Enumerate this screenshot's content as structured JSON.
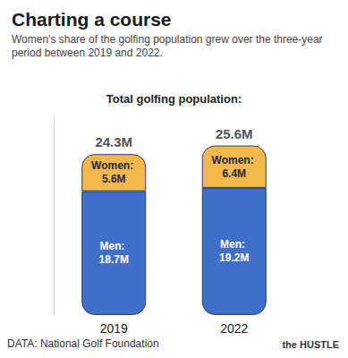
{
  "chart_data": {
    "type": "bar",
    "stacked": true,
    "title": "Charting a course",
    "subtitle": "Women's share of the golfing population grew over the three-year period between 2019 and 2022.",
    "annotation": "Total golfing population:",
    "source": "DATA: National Golf Foundation",
    "brand": "the HUSTLE",
    "categories": [
      "2019",
      "2022"
    ],
    "series": [
      {
        "name": "Men",
        "color": "#3f6fc6",
        "values": [
          18.7,
          19.2
        ],
        "value_labels": [
          "Men: 18.7M",
          "Men: 19.2M"
        ]
      },
      {
        "name": "Women",
        "color": "#f2b84b",
        "values": [
          5.6,
          6.4
        ],
        "value_labels": [
          "Women: 5.6M",
          "Women: 6.4M"
        ]
      }
    ],
    "totals": {
      "values": [
        24.3,
        25.6
      ],
      "value_labels": [
        "24.3M",
        "25.6M"
      ]
    },
    "ylim": [
      0,
      30
    ],
    "yticks": [],
    "tick_labels": "x",
    "data_labels": true,
    "grid": false
  }
}
